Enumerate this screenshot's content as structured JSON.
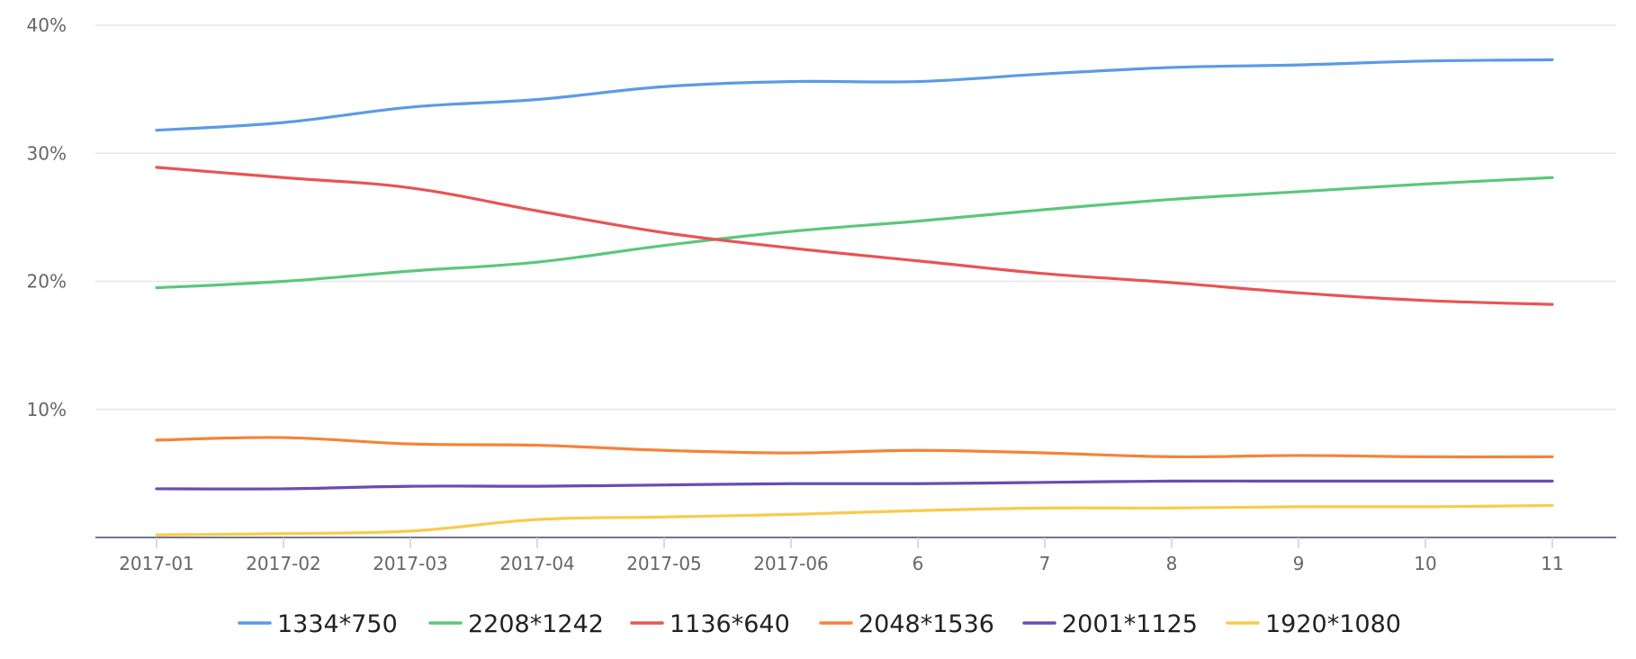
{
  "chart_data": {
    "type": "line",
    "x": [
      "2017-01",
      "2017-02",
      "2017-03",
      "2017-04",
      "2017-05",
      "2017-06",
      "6",
      "7",
      "8",
      "9",
      "10",
      "11"
    ],
    "ylim": [
      0,
      40
    ],
    "yticks": [
      "10%",
      "20%",
      "30%",
      "40%"
    ],
    "grid": true,
    "legend_position": "bottom",
    "series": [
      {
        "name": "1334*750",
        "color": "#5a9be6",
        "values": [
          31.8,
          32.4,
          33.6,
          34.2,
          35.2,
          35.6,
          35.6,
          36.2,
          36.7,
          36.9,
          37.2,
          37.3
        ]
      },
      {
        "name": "2208*1242",
        "color": "#5cc67c",
        "values": [
          19.5,
          20.0,
          20.8,
          21.5,
          22.8,
          23.9,
          24.7,
          25.6,
          26.4,
          27.0,
          27.6,
          28.1
        ]
      },
      {
        "name": "1136*640",
        "color": "#e85454",
        "values": [
          28.9,
          28.1,
          27.3,
          25.5,
          23.8,
          22.6,
          21.6,
          20.6,
          19.9,
          19.1,
          18.5,
          18.2
        ]
      },
      {
        "name": "2048*1536",
        "color": "#f5833a",
        "values": [
          7.6,
          7.8,
          7.3,
          7.2,
          6.8,
          6.6,
          6.8,
          6.6,
          6.3,
          6.4,
          6.3,
          6.3
        ]
      },
      {
        "name": "2001*1125",
        "color": "#6a4cb0",
        "values": [
          3.8,
          3.8,
          4.0,
          4.0,
          4.1,
          4.2,
          4.2,
          4.3,
          4.4,
          4.4,
          4.4,
          4.4
        ]
      },
      {
        "name": "1920*1080",
        "color": "#f8cb4c",
        "values": [
          0.2,
          0.3,
          0.5,
          1.4,
          1.6,
          1.8,
          2.1,
          2.3,
          2.3,
          2.4,
          2.4,
          2.5
        ]
      }
    ]
  }
}
